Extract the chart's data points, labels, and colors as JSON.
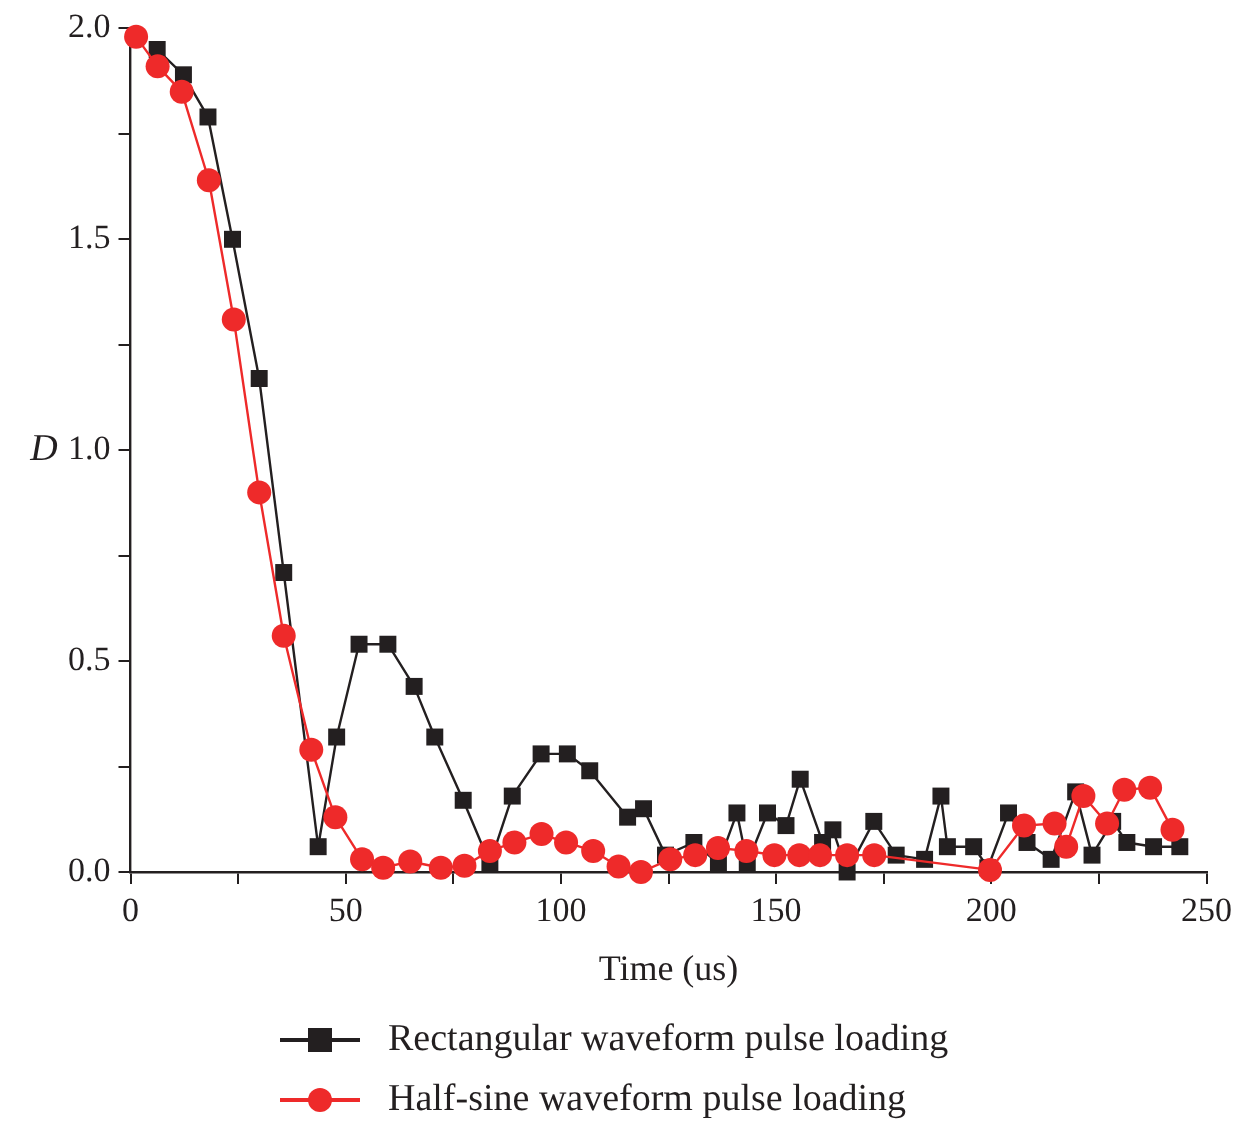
{
  "chart_data": {
    "type": "line",
    "xlabel": "Time (us)",
    "ylabel": "D",
    "xlim": [
      0,
      250
    ],
    "ylim": [
      0,
      2.0
    ],
    "xticks": [
      0,
      {
        "value": 25,
        "label": null
      },
      50,
      {
        "value": 75,
        "label": null
      },
      100,
      {
        "value": 125,
        "label": null
      },
      150,
      {
        "value": 175,
        "label": null
      },
      200,
      {
        "value": 225,
        "label": null
      },
      250
    ],
    "yticks": [
      "0.0",
      {
        "value": 0.25,
        "label": null
      },
      {
        "value": 0.5,
        "label": "0.5"
      },
      {
        "value": 0.75,
        "label": null
      },
      {
        "value": 1.0,
        "label": "1.0"
      },
      {
        "value": 1.25,
        "label": null
      },
      {
        "value": 1.5,
        "label": "1.5"
      },
      {
        "value": 1.75,
        "label": null
      },
      {
        "value": 2.0,
        "label": "2.0"
      }
    ],
    "grid": false,
    "legend": "bottom left",
    "line_style": "solid",
    "series": [
      {
        "name": "Rectangular waveform pulse loading",
        "color": "#231f20",
        "marker": "square",
        "x": [
          6.2,
          12.3,
          18,
          23.7,
          29.9,
          35.6,
          43.6,
          47.9,
          53.1,
          59.8,
          65.9,
          70.7,
          77.3,
          83.5,
          88.7,
          95.4,
          101.5,
          106.7,
          115.5,
          119.2,
          124.3,
          130.9,
          136.6,
          140.9,
          143.3,
          148,
          152.3,
          155.6,
          160.8,
          163.2,
          166.5,
          172.7,
          177.9,
          184.5,
          188.3,
          189.8,
          195.9,
          199.2,
          204,
          208.3,
          213.9,
          219.6,
          223.4,
          228.2,
          231.5,
          237.7,
          243.8
        ],
        "values": [
          1.95,
          1.89,
          1.79,
          1.5,
          1.17,
          0.71,
          0.06,
          0.32,
          0.54,
          0.54,
          0.44,
          0.32,
          0.17,
          0.02,
          0.18,
          0.28,
          0.28,
          0.24,
          0.13,
          0.15,
          0.04,
          0.07,
          0.02,
          0.14,
          0.02,
          0.14,
          0.11,
          0.22,
          0.07,
          0.1,
          0.0,
          0.12,
          0.04,
          0.03,
          0.18,
          0.06,
          0.06,
          0.01,
          0.14,
          0.07,
          0.03,
          0.19,
          0.04,
          0.12,
          0.07,
          0.06,
          0.06
        ]
      },
      {
        "name": "Half-sine waveform pulse loading",
        "color": "#ee2a2a",
        "marker": "circle",
        "x": [
          1.3,
          6.3,
          11.9,
          18.2,
          24,
          29.9,
          35.6,
          42,
          47.6,
          53.8,
          58.7,
          65,
          72.1,
          77.6,
          83.5,
          89.2,
          95.5,
          101.2,
          107.5,
          113.4,
          118.6,
          125.4,
          131.2,
          136.5,
          143.1,
          149.6,
          155.4,
          160.2,
          166.5,
          172.8,
          199.7,
          207.6,
          214.7,
          217.4,
          221.4,
          226.9,
          230.9,
          236.9,
          242.1
        ],
        "values": [
          1.98,
          1.91,
          1.85,
          1.64,
          1.31,
          0.9,
          0.56,
          0.29,
          0.13,
          0.03,
          0.01,
          0.025,
          0.01,
          0.015,
          0.05,
          0.07,
          0.09,
          0.07,
          0.05,
          0.013,
          0.0,
          0.03,
          0.04,
          0.057,
          0.05,
          0.04,
          0.04,
          0.04,
          0.04,
          0.04,
          0.005,
          0.11,
          0.115,
          0.06,
          0.18,
          0.115,
          0.195,
          0.2,
          0.1
        ]
      }
    ]
  }
}
